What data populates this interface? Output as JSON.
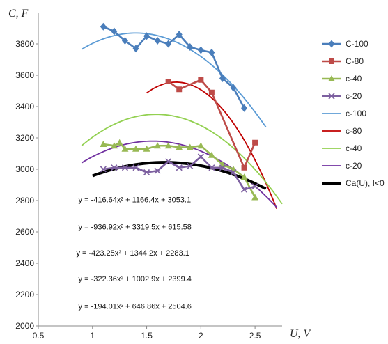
{
  "chart_data": {
    "type": "line",
    "ylabel": "C, F",
    "xlabel": "U, V",
    "xlim": [
      0.5,
      2.75
    ],
    "ylim": [
      2000,
      4000
    ],
    "x_ticks": [
      "0.5",
      "1",
      "1.5",
      "2",
      "2.5"
    ],
    "y_ticks": [
      "2000",
      "2200",
      "2400",
      "2600",
      "2800",
      "3000",
      "3200",
      "3400",
      "3600",
      "3800"
    ],
    "grid": false,
    "legend_position": "right",
    "colors": {
      "c100": "#4a7ebb",
      "c80": "#be4b48",
      "c40": "#98b954",
      "c20": "#7d60a0",
      "fit100": "#5b9bd5",
      "fit80": "#c00000",
      "fit40": "#92d050",
      "fit20": "#7030a0",
      "ca": "#000000"
    },
    "series": [
      {
        "name": "C-100",
        "key": "c100",
        "kind": "marker-line",
        "marker": "diamond",
        "x": [
          1.1,
          1.2,
          1.3,
          1.4,
          1.5,
          1.6,
          1.7,
          1.8,
          1.9,
          2.0,
          2.1,
          2.2,
          2.3,
          2.4
        ],
        "y": [
          3910,
          3880,
          3820,
          3770,
          3850,
          3820,
          3800,
          3860,
          3780,
          3760,
          3745,
          3580,
          3520,
          3390
        ]
      },
      {
        "name": "C-80",
        "key": "c80",
        "kind": "marker-line",
        "marker": "square",
        "x": [
          1.7,
          1.8,
          2.0,
          2.1,
          2.4,
          2.5
        ],
        "y": [
          3560,
          3510,
          3570,
          3490,
          3010,
          3170
        ]
      },
      {
        "name": "c-40",
        "key": "c40",
        "kind": "marker-line",
        "marker": "triangle",
        "x": [
          1.1,
          1.2,
          1.25,
          1.3,
          1.4,
          1.5,
          1.6,
          1.7,
          1.8,
          1.9,
          2.0,
          2.1,
          2.2,
          2.3,
          2.4,
          2.5
        ],
        "y": [
          3160,
          3150,
          3170,
          3130,
          3130,
          3130,
          3150,
          3150,
          3140,
          3140,
          3150,
          3090,
          3030,
          3000,
          2950,
          2820
        ]
      },
      {
        "name": "c-20",
        "key": "c20",
        "kind": "marker-line",
        "marker": "x",
        "x": [
          1.1,
          1.2,
          1.3,
          1.4,
          1.5,
          1.6,
          1.7,
          1.8,
          1.9,
          2.0,
          2.1,
          2.2,
          2.3,
          2.4,
          2.5
        ],
        "y": [
          3000,
          3010,
          3010,
          3010,
          2980,
          2990,
          3050,
          3010,
          3020,
          3080,
          3010,
          3010,
          2980,
          2870,
          2890
        ]
      },
      {
        "name": "c-100",
        "key": "fit100",
        "kind": "fit",
        "a": -416.64,
        "b": 1166.4,
        "c": 3053.1,
        "x_from": 0.9,
        "x_to": 2.6
      },
      {
        "name": "c-80",
        "key": "fit80",
        "kind": "fit",
        "a": -936.92,
        "b": 3319.5,
        "c": 615.58,
        "x_from": 1.5,
        "x_to": 2.7
      },
      {
        "name": "c-40",
        "key": "fit40",
        "kind": "fit",
        "a": -423.25,
        "b": 1344.2,
        "c": 2283.1,
        "x_from": 0.9,
        "x_to": 2.75
      },
      {
        "name": "c-20",
        "key": "fit20",
        "kind": "fit",
        "a": -322.36,
        "b": 1002.9,
        "c": 2399.4,
        "x_from": 0.9,
        "x_to": 2.7
      },
      {
        "name": "Ca(U), I<0",
        "key": "ca",
        "kind": "fit",
        "a": -194.01,
        "b": 646.86,
        "c": 2504.6,
        "x_from": 1.0,
        "x_to": 2.6,
        "thick": true
      }
    ],
    "equations": [
      {
        "text": "y = -416.64x² + 1166.4x + 3053.1",
        "x": 0.87,
        "y": 2790
      },
      {
        "text": "y = -936.92x² + 3319.5x + 615.58",
        "x": 0.87,
        "y": 2615
      },
      {
        "text": "y = -423.25x² + 1344.2x + 2283.1",
        "x": 0.85,
        "y": 2450
      },
      {
        "text": "y = -322.36x² + 1002.9x + 2399.4",
        "x": 0.87,
        "y": 2285
      },
      {
        "text": "y = -194.01x² + 646.86x + 2504.6",
        "x": 0.87,
        "y": 2108
      }
    ]
  }
}
